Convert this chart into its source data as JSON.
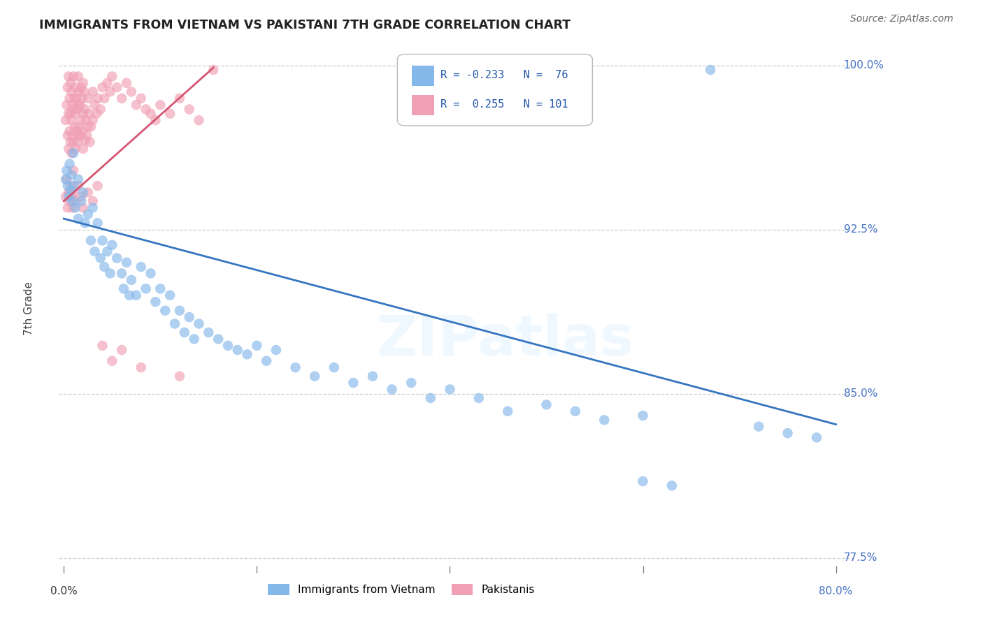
{
  "title": "IMMIGRANTS FROM VIETNAM VS PAKISTANI 7TH GRADE CORRELATION CHART",
  "source": "Source: ZipAtlas.com",
  "ylabel": "7th Grade",
  "ylim": [
    0.768,
    1.01
  ],
  "xlim": [
    -0.005,
    0.82
  ],
  "right_ytick_vals": [
    1.0,
    0.925,
    0.85,
    0.775
  ],
  "right_ytick_labels": [
    "100.0%",
    "92.5%",
    "85.0%",
    "77.5%"
  ],
  "hgrid_vals": [
    0.775,
    0.85,
    0.925,
    1.0
  ],
  "watermark": "ZIPatlas",
  "blue_color": "#85b8ea",
  "pink_color": "#f0a0b5",
  "line_blue_color": "#3575c0",
  "line_pink_color": "#d45570",
  "blue_line_x": [
    0.0,
    0.8
  ],
  "blue_line_y": [
    0.93,
    0.836
  ],
  "pink_line_x": [
    0.0,
    0.155
  ],
  "pink_line_y": [
    0.938,
    0.999
  ],
  "legend_R_blue": "-0.233",
  "legend_N_blue": "76",
  "legend_R_pink": "0.255",
  "legend_N_pink": "101",
  "vietnam_x": [
    0.002,
    0.003,
    0.004,
    0.005,
    0.006,
    0.007,
    0.008,
    0.009,
    0.01,
    0.01,
    0.012,
    0.015,
    0.015,
    0.018,
    0.02,
    0.022,
    0.025,
    0.028,
    0.03,
    0.032,
    0.035,
    0.038,
    0.04,
    0.042,
    0.045,
    0.048,
    0.05,
    0.055,
    0.06,
    0.062,
    0.065,
    0.068,
    0.07,
    0.075,
    0.08,
    0.085,
    0.09,
    0.095,
    0.1,
    0.105,
    0.11,
    0.115,
    0.12,
    0.125,
    0.13,
    0.135,
    0.14,
    0.15,
    0.16,
    0.17,
    0.18,
    0.19,
    0.2,
    0.21,
    0.22,
    0.24,
    0.26,
    0.28,
    0.3,
    0.32,
    0.34,
    0.36,
    0.38,
    0.4,
    0.43,
    0.46,
    0.5,
    0.53,
    0.56,
    0.6,
    0.67,
    0.72,
    0.75,
    0.78,
    0.6,
    0.63
  ],
  "vietnam_y": [
    0.948,
    0.952,
    0.945,
    0.94,
    0.955,
    0.943,
    0.95,
    0.938,
    0.945,
    0.96,
    0.935,
    0.948,
    0.93,
    0.938,
    0.942,
    0.928,
    0.932,
    0.92,
    0.935,
    0.915,
    0.928,
    0.912,
    0.92,
    0.908,
    0.915,
    0.905,
    0.918,
    0.912,
    0.905,
    0.898,
    0.91,
    0.895,
    0.902,
    0.895,
    0.908,
    0.898,
    0.905,
    0.892,
    0.898,
    0.888,
    0.895,
    0.882,
    0.888,
    0.878,
    0.885,
    0.875,
    0.882,
    0.878,
    0.875,
    0.872,
    0.87,
    0.868,
    0.872,
    0.865,
    0.87,
    0.862,
    0.858,
    0.862,
    0.855,
    0.858,
    0.852,
    0.855,
    0.848,
    0.852,
    0.848,
    0.842,
    0.845,
    0.842,
    0.838,
    0.84,
    0.998,
    0.835,
    0.832,
    0.83,
    0.81,
    0.808
  ],
  "pakistan_x": [
    0.002,
    0.003,
    0.004,
    0.004,
    0.005,
    0.005,
    0.005,
    0.006,
    0.006,
    0.007,
    0.007,
    0.007,
    0.008,
    0.008,
    0.008,
    0.009,
    0.009,
    0.01,
    0.01,
    0.01,
    0.01,
    0.011,
    0.011,
    0.012,
    0.012,
    0.012,
    0.013,
    0.013,
    0.014,
    0.014,
    0.015,
    0.015,
    0.015,
    0.016,
    0.016,
    0.017,
    0.017,
    0.018,
    0.018,
    0.019,
    0.019,
    0.02,
    0.02,
    0.02,
    0.021,
    0.022,
    0.022,
    0.023,
    0.024,
    0.025,
    0.025,
    0.026,
    0.027,
    0.028,
    0.03,
    0.03,
    0.032,
    0.034,
    0.035,
    0.038,
    0.04,
    0.042,
    0.045,
    0.048,
    0.05,
    0.055,
    0.06,
    0.065,
    0.07,
    0.075,
    0.08,
    0.085,
    0.09,
    0.095,
    0.1,
    0.11,
    0.12,
    0.13,
    0.14,
    0.155,
    0.002,
    0.003,
    0.004,
    0.005,
    0.006,
    0.007,
    0.008,
    0.009,
    0.01,
    0.012,
    0.015,
    0.018,
    0.02,
    0.025,
    0.03,
    0.035,
    0.04,
    0.05,
    0.06,
    0.08,
    0.12
  ],
  "pakistan_y": [
    0.975,
    0.982,
    0.968,
    0.99,
    0.978,
    0.962,
    0.995,
    0.985,
    0.97,
    0.992,
    0.978,
    0.965,
    0.988,
    0.975,
    0.96,
    0.982,
    0.968,
    0.995,
    0.98,
    0.965,
    0.952,
    0.985,
    0.972,
    0.99,
    0.978,
    0.962,
    0.985,
    0.97,
    0.98,
    0.965,
    0.995,
    0.982,
    0.968,
    0.988,
    0.972,
    0.982,
    0.968,
    0.99,
    0.975,
    0.985,
    0.97,
    0.992,
    0.978,
    0.962,
    0.988,
    0.98,
    0.966,
    0.975,
    0.968,
    0.985,
    0.972,
    0.978,
    0.965,
    0.972,
    0.988,
    0.975,
    0.982,
    0.978,
    0.985,
    0.98,
    0.99,
    0.985,
    0.992,
    0.988,
    0.995,
    0.99,
    0.985,
    0.992,
    0.988,
    0.982,
    0.985,
    0.98,
    0.978,
    0.975,
    0.982,
    0.978,
    0.985,
    0.98,
    0.975,
    0.998,
    0.94,
    0.948,
    0.935,
    0.942,
    0.938,
    0.945,
    0.94,
    0.935,
    0.942,
    0.938,
    0.945,
    0.94,
    0.935,
    0.942,
    0.938,
    0.945,
    0.872,
    0.865,
    0.87,
    0.862,
    0.858
  ]
}
